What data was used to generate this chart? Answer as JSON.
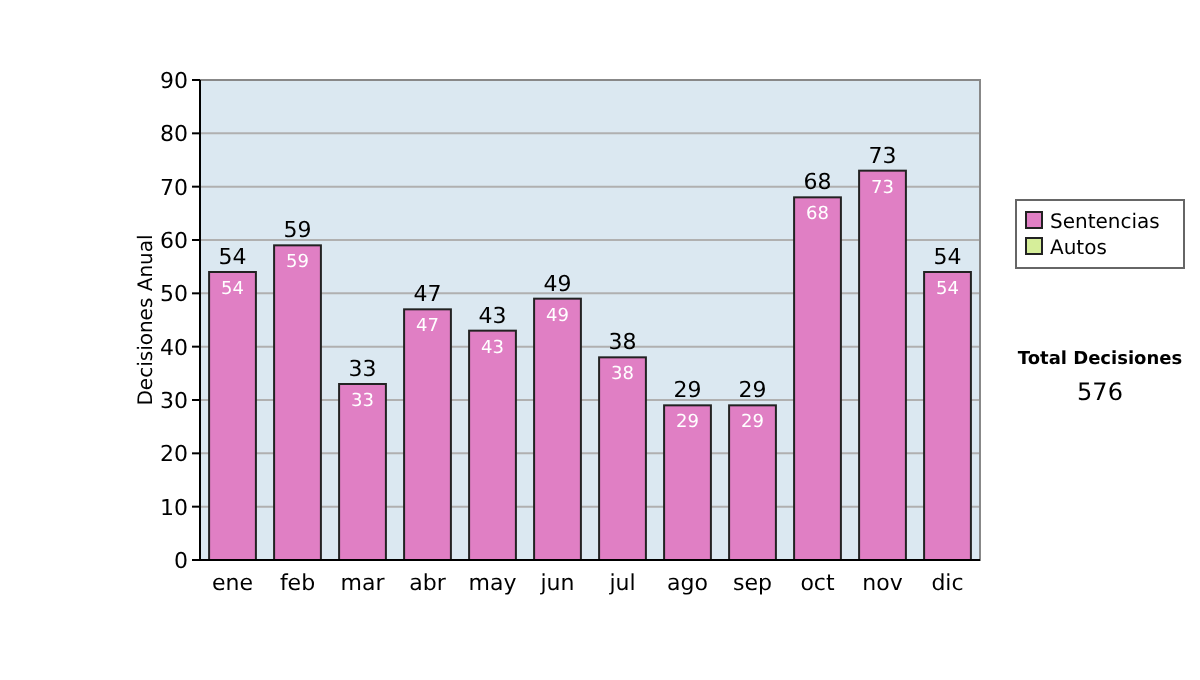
{
  "chart_data": {
    "type": "bar",
    "ylabel": "Decisiones Anual",
    "categories": [
      "ene",
      "feb",
      "mar",
      "abr",
      "may",
      "jun",
      "jul",
      "ago",
      "sep",
      "oct",
      "nov",
      "dic"
    ],
    "series": [
      {
        "name": "Sentencias",
        "color": "#e07fc4",
        "values": [
          54,
          59,
          33,
          47,
          43,
          49,
          38,
          29,
          29,
          68,
          73,
          54
        ],
        "value_labels": [
          "54",
          "59",
          "33",
          "47",
          "43",
          "49",
          "38",
          "29",
          "29",
          "68",
          "73",
          "54"
        ]
      },
      {
        "name": "Autos",
        "color": "#d6ee9a",
        "values": [
          0,
          0,
          0,
          0,
          0,
          0,
          0,
          0,
          0,
          0,
          0,
          0
        ]
      }
    ],
    "stacked": true,
    "totals": [
      "54",
      "59",
      "33",
      "47",
      "43",
      "49",
      "38",
      "29",
      "29",
      "68",
      "73",
      "54"
    ],
    "ylim": [
      0,
      90
    ],
    "yticks": [
      0,
      10,
      20,
      30,
      40,
      50,
      60,
      70,
      80,
      90
    ],
    "grid": "y",
    "legend": "right",
    "annotations": [
      "Total Decisiones",
      "576"
    ]
  }
}
